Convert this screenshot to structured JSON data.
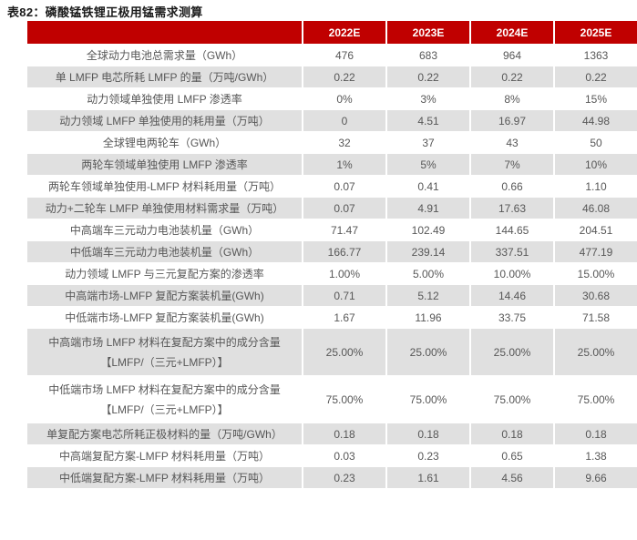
{
  "title": "表82：磷酸锰铁锂正极用锰需求测算",
  "colors": {
    "header_bg": "#c00000",
    "header_text": "#ffffff",
    "alt_row_bg": "#e0e0e0",
    "body_text": "#575757",
    "title_text": "#1a1a1a"
  },
  "table": {
    "label_column_header": "",
    "year_columns": [
      "2022E",
      "2023E",
      "2024E",
      "2025E"
    ],
    "rows": [
      {
        "label": "全球动力电池总需求量（GWh）",
        "values": [
          "476",
          "683",
          "964",
          "1363"
        ]
      },
      {
        "label": "单 LMFP 电芯所耗 LMFP 的量（万吨/GWh）",
        "values": [
          "0.22",
          "0.22",
          "0.22",
          "0.22"
        ]
      },
      {
        "label": "动力领域单独使用 LMFP 渗透率",
        "values": [
          "0%",
          "3%",
          "8%",
          "15%"
        ]
      },
      {
        "label": "动力领域 LMFP 单独使用的耗用量（万吨）",
        "values": [
          "0",
          "4.51",
          "16.97",
          "44.98"
        ]
      },
      {
        "label": "全球锂电两轮车（GWh）",
        "values": [
          "32",
          "37",
          "43",
          "50"
        ]
      },
      {
        "label": "两轮车领域单独使用 LMFP 渗透率",
        "values": [
          "1%",
          "5%",
          "7%",
          "10%"
        ]
      },
      {
        "label": "两轮车领域单独使用-LMFP 材料耗用量（万吨）",
        "values": [
          "0.07",
          "0.41",
          "0.66",
          "1.10"
        ]
      },
      {
        "label": "动力+二轮车 LMFP 单独使用材料需求量（万吨）",
        "values": [
          "0.07",
          "4.91",
          "17.63",
          "46.08"
        ]
      },
      {
        "label": "中高端车三元动力电池装机量（GWh）",
        "values": [
          "71.47",
          "102.49",
          "144.65",
          "204.51"
        ]
      },
      {
        "label": "中低端车三元动力电池装机量（GWh）",
        "values": [
          "166.77",
          "239.14",
          "337.51",
          "477.19"
        ]
      },
      {
        "label": "动力领域 LMFP 与三元复配方案的渗透率",
        "values": [
          "1.00%",
          "5.00%",
          "10.00%",
          "15.00%"
        ]
      },
      {
        "label": "中高端市场-LMFP 复配方案装机量(GWh)",
        "values": [
          "0.71",
          "5.12",
          "14.46",
          "30.68"
        ]
      },
      {
        "label": "中低端市场-LMFP 复配方案装机量(GWh)",
        "values": [
          "1.67",
          "11.96",
          "33.75",
          "71.58"
        ]
      },
      {
        "label": "中高端市场 LMFP 材料在复配方案中的成分含量\n【LMFP/（三元+LMFP）】",
        "values": [
          "25.00%",
          "25.00%",
          "25.00%",
          "25.00%"
        ],
        "twoline": true
      },
      {
        "label": "中低端市场 LMFP 材料在复配方案中的成分含量\n【LMFP/（三元+LMFP）】",
        "values": [
          "75.00%",
          "75.00%",
          "75.00%",
          "75.00%"
        ],
        "twoline": true
      },
      {
        "label": "单复配方案电芯所耗正极材料的量（万吨/GWh）",
        "values": [
          "0.18",
          "0.18",
          "0.18",
          "0.18"
        ]
      },
      {
        "label": "中高端复配方案-LMFP 材料耗用量（万吨）",
        "values": [
          "0.03",
          "0.23",
          "0.65",
          "1.38"
        ]
      },
      {
        "label": "中低端复配方案-LMFP 材料耗用量（万吨）",
        "values": [
          "0.23",
          "1.61",
          "4.56",
          "9.66"
        ]
      }
    ]
  }
}
